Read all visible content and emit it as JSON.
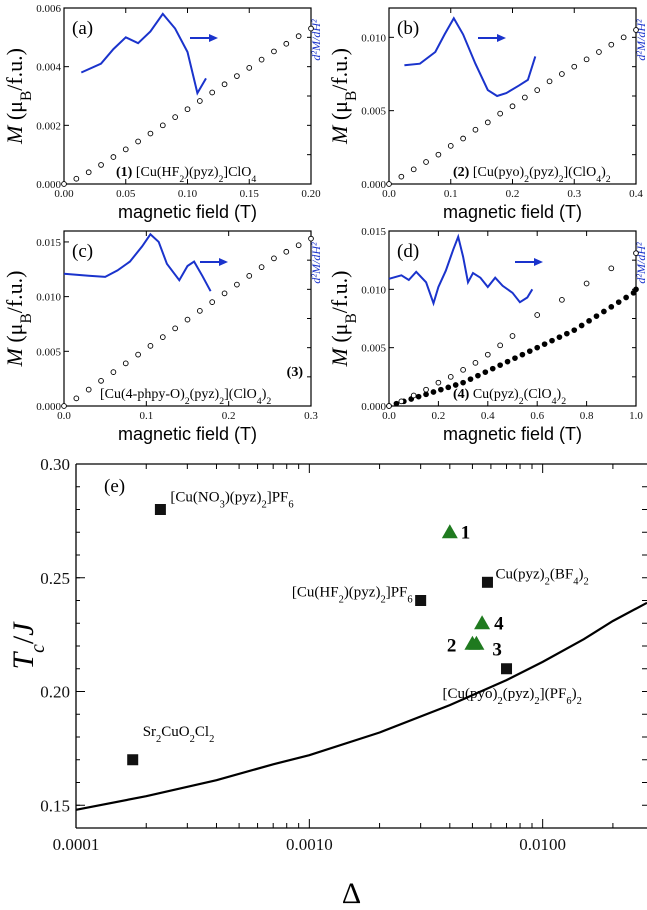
{
  "chart_data": [
    {
      "id": "a",
      "type": "scatter",
      "panel_label": "(a)",
      "xlabel": "magnetic field (T)",
      "ylabel": "M (μB/f.u.)",
      "y2label": "d²M/dH²",
      "xlim": [
        0,
        0.2
      ],
      "ylim": [
        0,
        0.006
      ],
      "x_ticks": [
        0.0,
        0.05,
        0.1,
        0.15,
        0.2
      ],
      "x_tick_labels": [
        "0.00",
        "0.05",
        "0.10",
        "0.15",
        "0.20"
      ],
      "y_ticks": [
        0,
        0.002,
        0.004,
        0.006
      ],
      "y_tick_labels": [
        "0.000",
        "0.002",
        "0.004",
        "0.006"
      ],
      "compound": "(1) [Cu(HF2)(pyz)2]ClO4",
      "series": [
        {
          "style": "open",
          "x": [
            0.0,
            0.01,
            0.02,
            0.03,
            0.04,
            0.05,
            0.06,
            0.07,
            0.08,
            0.09,
            0.1,
            0.11,
            0.12,
            0.13,
            0.14,
            0.15,
            0.16,
            0.17,
            0.18,
            0.19,
            0.2
          ],
          "y": [
            0.0,
            0.00018,
            0.0004,
            0.00065,
            0.00092,
            0.00118,
            0.00145,
            0.00172,
            0.002,
            0.00228,
            0.00255,
            0.00283,
            0.00312,
            0.0034,
            0.00368,
            0.00396,
            0.00424,
            0.00452,
            0.00478,
            0.00504,
            0.0053
          ]
        },
        {
          "style": "deriv",
          "x": [
            0.014,
            0.03,
            0.04,
            0.05,
            0.06,
            0.07,
            0.08,
            0.09,
            0.1,
            0.108,
            0.115
          ],
          "y": [
            0.0038,
            0.0041,
            0.0046,
            0.005,
            0.0048,
            0.0052,
            0.0058,
            0.0053,
            0.0045,
            0.0031,
            0.0036
          ]
        }
      ]
    },
    {
      "id": "b",
      "type": "scatter",
      "panel_label": "(b)",
      "xlabel": "magnetic field (T)",
      "ylabel": "M (μB/f.u.)",
      "y2label": "d²M/dH²",
      "xlim": [
        0,
        0.4
      ],
      "ylim": [
        0,
        0.012
      ],
      "x_ticks": [
        0.0,
        0.1,
        0.2,
        0.3,
        0.4
      ],
      "x_tick_labels": [
        "0.0",
        "0.1",
        "0.2",
        "0.3",
        "0.4"
      ],
      "y_ticks": [
        0,
        0.005,
        0.01
      ],
      "y_tick_labels": [
        "0.000",
        "0.005",
        "0.010"
      ],
      "compound": "(2) [Cu(pyo)2(pyz)2](ClO4)2",
      "series": [
        {
          "style": "open",
          "x": [
            0.0,
            0.02,
            0.04,
            0.06,
            0.08,
            0.1,
            0.12,
            0.14,
            0.16,
            0.18,
            0.2,
            0.22,
            0.24,
            0.26,
            0.28,
            0.3,
            0.32,
            0.34,
            0.36,
            0.38,
            0.4
          ],
          "y": [
            0.0,
            0.0005,
            0.001,
            0.0015,
            0.002,
            0.0026,
            0.0031,
            0.0037,
            0.0042,
            0.0048,
            0.0053,
            0.0059,
            0.0064,
            0.007,
            0.0075,
            0.008,
            0.0085,
            0.009,
            0.0095,
            0.01,
            0.0105
          ]
        },
        {
          "style": "deriv",
          "x": [
            0.025,
            0.05,
            0.075,
            0.09,
            0.105,
            0.12,
            0.14,
            0.16,
            0.175,
            0.19,
            0.21,
            0.225,
            0.237
          ],
          "y": [
            0.0081,
            0.0082,
            0.009,
            0.0102,
            0.0113,
            0.0102,
            0.0082,
            0.0064,
            0.006,
            0.0062,
            0.0067,
            0.0071,
            0.0087
          ]
        }
      ]
    },
    {
      "id": "c",
      "type": "scatter",
      "panel_label": "(c)",
      "xlabel": "magnetic field (T)",
      "ylabel": "M (μB/f.u.)",
      "y2label": "d²M/dH²",
      "xlim": [
        0,
        0.3
      ],
      "ylim": [
        0,
        0.016
      ],
      "x_ticks": [
        0.0,
        0.1,
        0.2,
        0.3
      ],
      "x_tick_labels": [
        "0.0",
        "0.1",
        "0.2",
        "0.3"
      ],
      "y_ticks": [
        0,
        0.005,
        0.01,
        0.015
      ],
      "y_tick_labels": [
        "0.000",
        "0.005",
        "0.010",
        "0.015"
      ],
      "compound": "[Cu(4-phpy-O)2(pyz)2](ClO4)2",
      "compound_number": "(3)",
      "series": [
        {
          "style": "open",
          "x": [
            0.0,
            0.015,
            0.03,
            0.045,
            0.06,
            0.075,
            0.09,
            0.105,
            0.12,
            0.135,
            0.15,
            0.165,
            0.18,
            0.195,
            0.21,
            0.225,
            0.24,
            0.255,
            0.27,
            0.285,
            0.3
          ],
          "y": [
            0.0,
            0.0007,
            0.0015,
            0.0023,
            0.0031,
            0.0039,
            0.0047,
            0.0055,
            0.0063,
            0.0071,
            0.0079,
            0.0087,
            0.0095,
            0.0103,
            0.0111,
            0.0119,
            0.0127,
            0.0135,
            0.0141,
            0.0147,
            0.0153
          ]
        },
        {
          "style": "deriv",
          "x": [
            0.0,
            0.03,
            0.05,
            0.065,
            0.08,
            0.095,
            0.105,
            0.115,
            0.125,
            0.14,
            0.15,
            0.158,
            0.168,
            0.178
          ],
          "y": [
            0.0121,
            0.0119,
            0.0118,
            0.0124,
            0.0132,
            0.0146,
            0.0157,
            0.015,
            0.013,
            0.0115,
            0.0128,
            0.0132,
            0.0119,
            0.0105
          ]
        }
      ]
    },
    {
      "id": "d",
      "type": "scatter",
      "panel_label": "(d)",
      "xlabel": "magnetic field (T)",
      "ylabel": "M (μB/f.u.)",
      "y2label": "d²M/dH²",
      "xlim": [
        0,
        1.0
      ],
      "ylim": [
        0,
        0.015
      ],
      "x_ticks": [
        0.0,
        0.2,
        0.4,
        0.6,
        0.8,
        1.0
      ],
      "x_tick_labels": [
        "0.0",
        "0.2",
        "0.4",
        "0.6",
        "0.8",
        "1.0"
      ],
      "y_ticks": [
        0,
        0.005,
        0.01,
        0.015
      ],
      "y_tick_labels": [
        "0.000",
        "0.005",
        "0.010",
        "0.015"
      ],
      "compound": "(4) Cu(pyz)2(ClO4)2",
      "series": [
        {
          "style": "filled",
          "x": [
            0.0,
            0.03,
            0.06,
            0.09,
            0.12,
            0.15,
            0.18,
            0.21,
            0.24,
            0.27,
            0.3,
            0.33,
            0.36,
            0.39,
            0.42,
            0.45,
            0.48,
            0.51,
            0.54,
            0.57,
            0.6,
            0.63,
            0.66,
            0.69,
            0.72,
            0.75,
            0.78,
            0.81,
            0.84,
            0.87,
            0.9,
            0.93,
            0.96,
            0.99,
            1.0
          ],
          "y": [
            0.0,
            0.0002,
            0.0004,
            0.0006,
            0.0008,
            0.001,
            0.0012,
            0.0014,
            0.0016,
            0.0018,
            0.002,
            0.0023,
            0.0026,
            0.0029,
            0.0032,
            0.0035,
            0.0038,
            0.0041,
            0.0044,
            0.0047,
            0.005,
            0.0053,
            0.0056,
            0.0059,
            0.0062,
            0.0065,
            0.0069,
            0.0073,
            0.0077,
            0.0081,
            0.0085,
            0.0089,
            0.0093,
            0.0097,
            0.01
          ]
        },
        {
          "style": "open",
          "x": [
            0.0,
            0.05,
            0.1,
            0.15,
            0.2,
            0.25,
            0.3,
            0.35,
            0.4,
            0.45,
            0.5,
            0.6,
            0.7,
            0.8,
            0.9,
            1.0
          ],
          "y": [
            0.0,
            0.0004,
            0.0009,
            0.0014,
            0.002,
            0.0025,
            0.0031,
            0.0037,
            0.0044,
            0.0052,
            0.006,
            0.0078,
            0.0091,
            0.0105,
            0.0118,
            0.0131
          ]
        },
        {
          "style": "deriv",
          "x": [
            0.0,
            0.05,
            0.08,
            0.11,
            0.15,
            0.18,
            0.2,
            0.23,
            0.26,
            0.28,
            0.3,
            0.32,
            0.34,
            0.37,
            0.4,
            0.43,
            0.46,
            0.5,
            0.53,
            0.56,
            0.58
          ],
          "y": [
            0.0109,
            0.0112,
            0.0108,
            0.0115,
            0.0106,
            0.0088,
            0.0102,
            0.0116,
            0.0134,
            0.0145,
            0.0128,
            0.0106,
            0.0114,
            0.011,
            0.0102,
            0.011,
            0.0103,
            0.0097,
            0.0089,
            0.0093,
            0.01
          ]
        }
      ]
    },
    {
      "id": "e",
      "type": "scatter",
      "panel_label": "(e)",
      "xlabel": "Δ",
      "ylabel": "Tc/J",
      "xscale": "log",
      "xlim": [
        0.0001,
        0.028
      ],
      "ylim": [
        0.14,
        0.3
      ],
      "x_ticks": [
        0.0001,
        0.001,
        0.01
      ],
      "x_tick_labels": [
        "0.0001",
        "0.0010",
        "0.0100"
      ],
      "y_ticks": [
        0.15,
        0.2,
        0.25,
        0.3
      ],
      "y_tick_labels": [
        "0.15",
        "0.20",
        "0.25",
        "0.30"
      ],
      "curve": {
        "x": [
          0.0001,
          0.0002,
          0.0004,
          0.0007,
          0.001,
          0.002,
          0.004,
          0.007,
          0.01,
          0.015,
          0.02,
          0.028
        ],
        "y": [
          0.148,
          0.154,
          0.161,
          0.168,
          0.172,
          0.182,
          0.194,
          0.205,
          0.213,
          0.223,
          0.231,
          0.239
        ]
      },
      "squares": [
        {
          "x": 0.000175,
          "y": 0.17,
          "label": "Sr2CuO2Cl2"
        },
        {
          "x": 0.00023,
          "y": 0.28,
          "label": "[Cu(NO3)(pyz)2]PF6"
        },
        {
          "x": 0.003,
          "y": 0.24,
          "label": "[Cu(HF2)(pyz)2]PF6"
        },
        {
          "x": 0.0058,
          "y": 0.248,
          "label": "Cu(pyz)2(BF4)2"
        },
        {
          "x": 0.007,
          "y": 0.21,
          "label": "[Cu(pyo)2(pyz)2](PF6)2"
        }
      ],
      "triangles": [
        {
          "x": 0.004,
          "y": 0.27,
          "label": "1"
        },
        {
          "x": 0.005,
          "y": 0.221,
          "label": "2"
        },
        {
          "x": 0.0052,
          "y": 0.221,
          "label": "3"
        },
        {
          "x": 0.0055,
          "y": 0.23,
          "label": "4"
        }
      ]
    }
  ],
  "colors": {
    "derivative": "#1a33cc",
    "triangle": "#1f7a1f",
    "square": "#111111"
  }
}
